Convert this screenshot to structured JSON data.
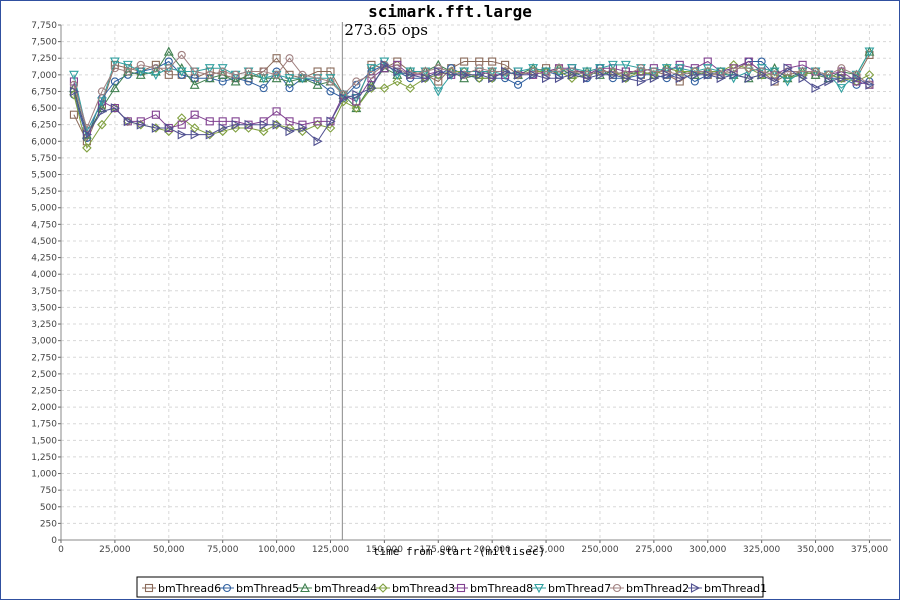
{
  "chart_data": {
    "type": "line",
    "title": "scimark.fft.large",
    "annotation": "273.65 ops",
    "xlabel": "time from start (millisec)",
    "ylabel": "",
    "xlim": [
      0,
      385000
    ],
    "ylim": [
      0,
      7750
    ],
    "marker_x": 130500,
    "x_ticks": [
      0,
      25000,
      50000,
      75000,
      100000,
      125000,
      150000,
      175000,
      200000,
      225000,
      250000,
      275000,
      300000,
      325000,
      350000,
      375000
    ],
    "x_tick_labels": [
      "0",
      "25,000",
      "50,000",
      "75,000",
      "100,000",
      "125,000",
      "150,000",
      "175,000",
      "200,000",
      "225,000",
      "250,000",
      "275,000",
      "300,000",
      "325,000",
      "350,000",
      "375,000"
    ],
    "y_tick_step": 250,
    "grid": true,
    "legend_position": "bottom",
    "x": [
      6000,
      12000,
      19000,
      25000,
      31000,
      37000,
      44000,
      50000,
      56000,
      62000,
      69000,
      75000,
      81000,
      87000,
      94000,
      100000,
      106000,
      112000,
      119000,
      125000,
      131000,
      137000,
      144000,
      150000,
      156000,
      162000,
      169000,
      175000,
      181000,
      187000,
      194000,
      200000,
      206000,
      212000,
      219000,
      225000,
      231000,
      237000,
      244000,
      250000,
      256000,
      262000,
      269000,
      275000,
      281000,
      287000,
      294000,
      300000,
      306000,
      312000,
      319000,
      325000,
      331000,
      337000,
      344000,
      350000,
      356000,
      362000,
      369000,
      375000
    ],
    "series": [
      {
        "name": "bmThread6",
        "color": "#8a6a5a",
        "marker": "square",
        "values": [
          6400,
          6000,
          6550,
          7150,
          7100,
          7050,
          7150,
          7000,
          7000,
          6950,
          7050,
          7000,
          6950,
          6950,
          7050,
          7250,
          7000,
          6950,
          7050,
          7050,
          6700,
          6600,
          7150,
          7100,
          7200,
          7050,
          7000,
          6900,
          7100,
          7200,
          7200,
          7200,
          7150,
          7000,
          7050,
          7100,
          7000,
          7050,
          7050,
          7100,
          7000,
          7050,
          7000,
          7050,
          7000,
          6900,
          7050,
          7000,
          7000,
          7050,
          7200,
          7050,
          6900,
          7000,
          7050,
          7000,
          7000,
          6950,
          6950,
          7300
        ]
      },
      {
        "name": "bmThread5",
        "color": "#3060a0",
        "marker": "circle",
        "values": [
          6700,
          6050,
          6650,
          6900,
          7000,
          7050,
          7100,
          7200,
          7000,
          6950,
          6950,
          6900,
          6950,
          6900,
          6800,
          7050,
          6800,
          6950,
          6900,
          6750,
          6650,
          6850,
          7050,
          7150,
          7050,
          6950,
          6950,
          7000,
          7100,
          7000,
          6950,
          6950,
          6950,
          6850,
          7000,
          7050,
          7000,
          7050,
          6950,
          7100,
          6950,
          6950,
          7000,
          7000,
          6950,
          7050,
          6900,
          7000,
          7050,
          7100,
          7200,
          7200,
          7000,
          6950,
          7000,
          7050,
          6950,
          6950,
          6850,
          6900
        ]
      },
      {
        "name": "bmThread4",
        "color": "#408050",
        "marker": "triangle-up",
        "values": [
          6800,
          6100,
          6500,
          6800,
          7050,
          7000,
          7050,
          7350,
          7100,
          6850,
          6950,
          7000,
          6900,
          7000,
          6950,
          6950,
          6900,
          6950,
          6850,
          6900,
          6700,
          6500,
          6850,
          7100,
          7000,
          7050,
          7050,
          7150,
          7050,
          6950,
          7000,
          7050,
          7050,
          7000,
          7100,
          7050,
          7100,
          7000,
          7050,
          7000,
          7050,
          7000,
          7050,
          7000,
          7100,
          7050,
          7000,
          7050,
          7000,
          7000,
          6950,
          7000,
          7100,
          6950,
          7050,
          7000,
          6950,
          7050,
          7000,
          7350
        ]
      },
      {
        "name": "bmThread3",
        "color": "#80a040",
        "marker": "diamond",
        "values": [
          6700,
          5900,
          6250,
          6500,
          6300,
          6250,
          6200,
          6150,
          6350,
          6200,
          6100,
          6150,
          6200,
          6200,
          6150,
          6250,
          6200,
          6150,
          6250,
          6200,
          6600,
          6500,
          6800,
          6800,
          6900,
          6800,
          6950,
          7000,
          7050,
          7050,
          6950,
          6950,
          7050,
          7000,
          7050,
          7050,
          7050,
          6950,
          7000,
          7050,
          7050,
          6950,
          7050,
          7000,
          7100,
          7050,
          7050,
          7050,
          7050,
          7150,
          7100,
          7000,
          7000,
          6950,
          7000,
          7050,
          7000,
          6950,
          6900,
          7000
        ]
      },
      {
        "name": "bmThread8",
        "color": "#804090",
        "marker": "square",
        "values": [
          6900,
          6150,
          6600,
          6500,
          6300,
          6300,
          6400,
          6200,
          6250,
          6400,
          6300,
          6300,
          6300,
          6250,
          6300,
          6450,
          6300,
          6250,
          6300,
          6300,
          6700,
          6600,
          6950,
          7100,
          7150,
          7000,
          7000,
          7050,
          7000,
          7050,
          7050,
          7000,
          7000,
          7050,
          7000,
          7050,
          7100,
          7100,
          7000,
          7100,
          7100,
          7050,
          7050,
          7100,
          7050,
          7150,
          7100,
          7200,
          7050,
          7100,
          7200,
          7050,
          7000,
          7100,
          7150,
          7050,
          7000,
          7050,
          6900,
          6850
        ]
      },
      {
        "name": "bmThread7",
        "color": "#30a0a0",
        "marker": "triangle-down",
        "values": [
          7000,
          6150,
          6600,
          7200,
          7150,
          7050,
          7000,
          7100,
          7050,
          7050,
          7100,
          7100,
          7000,
          7050,
          6950,
          7000,
          6950,
          6950,
          6950,
          6950,
          6700,
          6650,
          7100,
          7200,
          7000,
          7050,
          7050,
          6750,
          7000,
          7050,
          7050,
          7050,
          7000,
          7050,
          7100,
          7050,
          7050,
          7100,
          7050,
          7100,
          7150,
          7150,
          7100,
          7050,
          7100,
          7100,
          7050,
          7100,
          7050,
          6950,
          7050,
          7100,
          7050,
          6900,
          7050,
          7050,
          7000,
          6800,
          7000,
          7350
        ]
      },
      {
        "name": "bmThread2",
        "color": "#a08080",
        "marker": "circle",
        "values": [
          6850,
          6200,
          6750,
          7100,
          7050,
          7150,
          7100,
          7100,
          7300,
          7050,
          7000,
          7050,
          7000,
          7050,
          7050,
          7000,
          7250,
          7000,
          6950,
          6900,
          6700,
          6900,
          7000,
          7150,
          7100,
          7000,
          7050,
          7100,
          7050,
          7000,
          7100,
          7050,
          7050,
          7000,
          7050,
          7000,
          7100,
          7050,
          7000,
          7050,
          7050,
          7000,
          7100,
          7050,
          7050,
          7000,
          7050,
          7050,
          7000,
          7100,
          7100,
          7050,
          7000,
          7050,
          7050,
          7050,
          7000,
          7100,
          7000,
          6850
        ]
      },
      {
        "name": "bmThread1",
        "color": "#505090",
        "marker": "triangle-right",
        "values": [
          6750,
          6100,
          6450,
          6500,
          6300,
          6250,
          6200,
          6200,
          6100,
          6100,
          6100,
          6200,
          6250,
          6250,
          6250,
          6250,
          6150,
          6200,
          6000,
          6300,
          6650,
          6700,
          6800,
          7150,
          7050,
          7000,
          6950,
          7050,
          7000,
          7000,
          7000,
          6950,
          7050,
          7000,
          7000,
          6950,
          6950,
          7000,
          6950,
          7000,
          7000,
          6950,
          6900,
          6950,
          7000,
          6950,
          7000,
          7000,
          6950,
          7000,
          6950,
          7000,
          6900,
          7100,
          6950,
          6800,
          6900,
          6950,
          6950,
          6850
        ]
      }
    ]
  }
}
